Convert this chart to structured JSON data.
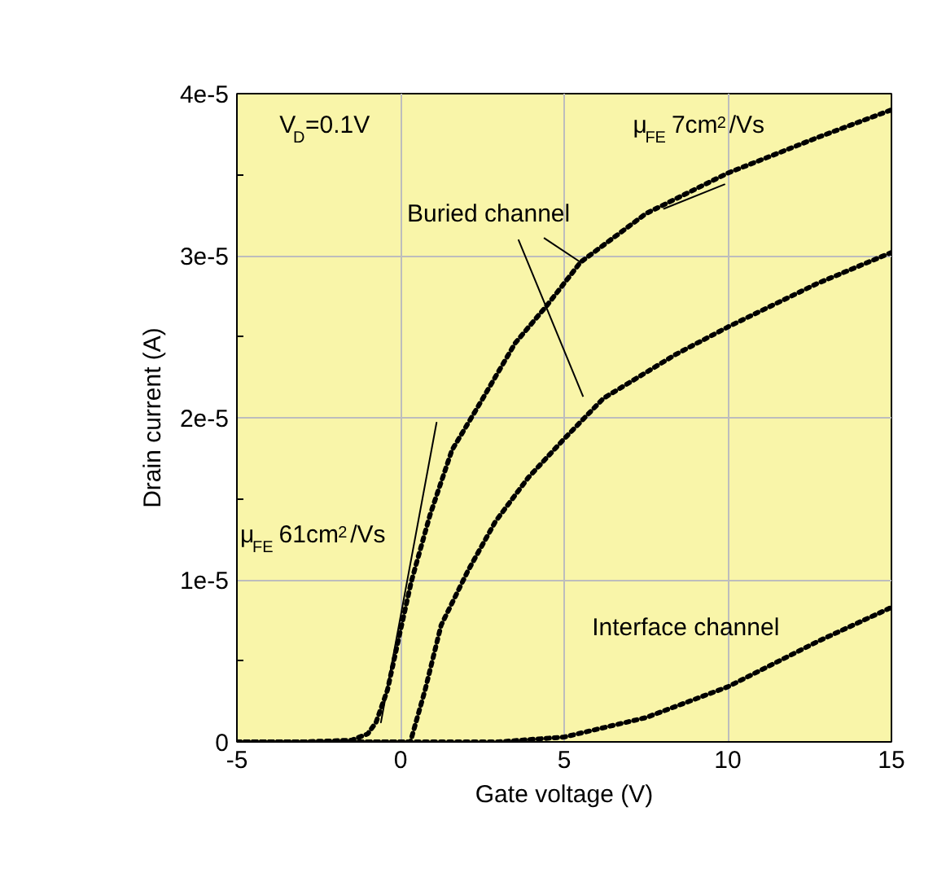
{
  "chart_data": {
    "type": "line",
    "xlabel": "Gate voltage (V)",
    "ylabel": "Drain current (A)",
    "xlim": [
      -5,
      15
    ],
    "xticks": [
      -5,
      0,
      5,
      10,
      15
    ],
    "ylim": [
      0,
      4e-05
    ],
    "yticks": [
      {
        "value": 0,
        "label": "0"
      },
      {
        "value": 1e-05,
        "label": "1e-5"
      },
      {
        "value": 2e-05,
        "label": "2e-5"
      },
      {
        "value": 3e-05,
        "label": "3e-5"
      },
      {
        "value": 4e-05,
        "label": "4e-5"
      }
    ],
    "grid": true,
    "line_style": "dotted",
    "series": [
      {
        "color": "#000000",
        "x": [
          -5,
          -3,
          -1.5,
          -1,
          -0.75,
          -0.4,
          0,
          0.33,
          0.9,
          1.57,
          2.37,
          3.5,
          4.5,
          5.5,
          7.5,
          10,
          12.75,
          15
        ],
        "values": [
          0,
          0,
          1e-07,
          5e-07,
          1.2e-06,
          3.2e-06,
          6.9e-06,
          9.9e-06,
          1.4e-05,
          1.8e-05,
          2.07e-05,
          2.46e-05,
          2.7e-05,
          2.96e-05,
          3.26e-05,
          3.51e-05,
          3.73e-05,
          3.9e-05
        ]
      },
      {
        "color": "#000000",
        "x": [
          -5,
          -2,
          0.3,
          0.75,
          1.24,
          2.07,
          2.9,
          3.9,
          5,
          6.2,
          8.4,
          10,
          12.75,
          15
        ],
        "values": [
          0,
          0,
          0,
          3.2e-06,
          7.2e-06,
          1.06e-05,
          1.36e-05,
          1.63e-05,
          1.87e-05,
          2.12e-05,
          2.39e-05,
          2.56e-05,
          2.83e-05,
          3.02e-05
        ]
      },
      {
        "color": "#000000",
        "x": [
          -5,
          0,
          3,
          5,
          7.5,
          10,
          12.75,
          15
        ],
        "values": [
          0,
          0,
          0,
          3e-07,
          1.5e-06,
          3.4e-06,
          6.2e-06,
          8.3e-06
        ]
      },
      {
        "type": "line",
        "line_style": "solid",
        "color": "#000000",
        "x": [
          -0.6,
          1.1
        ],
        "values": [
          1.2e-06,
          1.97e-05
        ]
      },
      {
        "type": "line",
        "line_style": "solid",
        "color": "#000000",
        "x": [
          8.05,
          9.9
        ],
        "values": [
          3.29e-05,
          3.44e-05
        ]
      }
    ],
    "annotations": [
      "V$_{D}$=0.1V",
      "μ$_{FE}$ 7cm$^{2}$/Vs",
      {
        "text": "Buried channel",
        "x": 5.5,
        "y": 2.96e-05
      },
      "μ$_{FE}$ 61cm$^{2}$/Vs",
      "Interface channel"
    ]
  }
}
